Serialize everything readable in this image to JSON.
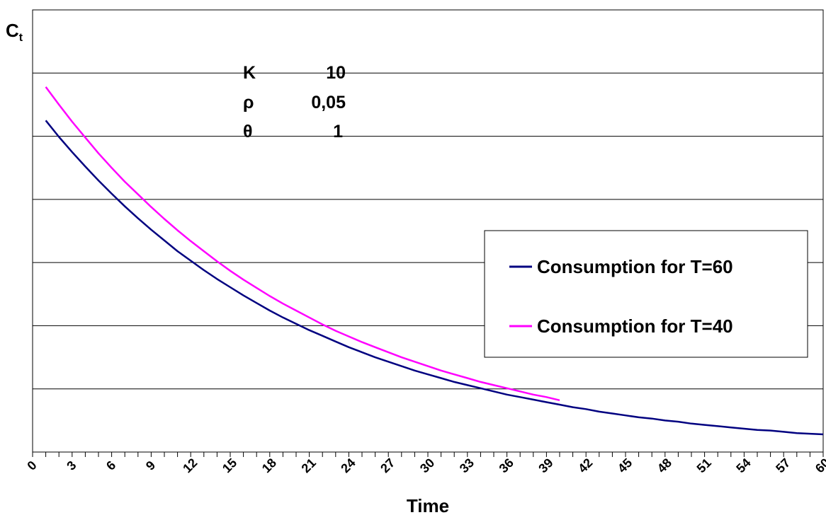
{
  "chart_data": {
    "type": "line",
    "title": "",
    "xlabel": "Time",
    "ylabel": "C",
    "ylabel_sub": "t",
    "xlim": [
      0,
      60
    ],
    "ylim": [
      0,
      7
    ],
    "y_tick_labels_shown": false,
    "grid": "horizontal",
    "x_ticks": [
      0,
      3,
      6,
      9,
      12,
      15,
      18,
      21,
      24,
      27,
      30,
      33,
      36,
      39,
      42,
      45,
      48,
      51,
      54,
      57,
      60
    ],
    "legend_position": "right",
    "parameters": [
      {
        "symbol": "K",
        "value": "10"
      },
      {
        "symbol": "ρ",
        "value": "0,05"
      },
      {
        "symbol": "θ",
        "value": "1"
      }
    ],
    "series": [
      {
        "name": "Consumption for T=60",
        "color": "#000080",
        "x": [
          1,
          2,
          3,
          4,
          5,
          6,
          7,
          8,
          9,
          10,
          11,
          12,
          13,
          14,
          15,
          16,
          17,
          18,
          19,
          20,
          21,
          22,
          23,
          24,
          25,
          26,
          27,
          28,
          29,
          30,
          31,
          32,
          33,
          34,
          35,
          36,
          37,
          38,
          39,
          40,
          41,
          42,
          43,
          44,
          45,
          46,
          47,
          48,
          49,
          50,
          51,
          52,
          53,
          54,
          55,
          56,
          57,
          58,
          59,
          60
        ],
        "y": [
          5.25,
          4.99,
          4.75,
          4.52,
          4.3,
          4.09,
          3.89,
          3.7,
          3.52,
          3.35,
          3.18,
          3.03,
          2.88,
          2.74,
          2.61,
          2.48,
          2.36,
          2.24,
          2.13,
          2.03,
          1.93,
          1.84,
          1.75,
          1.66,
          1.58,
          1.5,
          1.43,
          1.36,
          1.29,
          1.23,
          1.17,
          1.11,
          1.06,
          1.01,
          0.96,
          0.91,
          0.87,
          0.83,
          0.79,
          0.75,
          0.71,
          0.68,
          0.64,
          0.61,
          0.58,
          0.55,
          0.53,
          0.5,
          0.48,
          0.45,
          0.43,
          0.41,
          0.39,
          0.37,
          0.35,
          0.34,
          0.32,
          0.3,
          0.29,
          0.28
        ]
      },
      {
        "name": "Consumption for T=40",
        "color": "#FF00FF",
        "x": [
          1,
          2,
          3,
          4,
          5,
          6,
          7,
          8,
          9,
          10,
          11,
          12,
          13,
          14,
          15,
          16,
          17,
          18,
          19,
          20,
          21,
          22,
          23,
          24,
          25,
          26,
          27,
          28,
          29,
          30,
          31,
          32,
          33,
          34,
          35,
          36,
          37,
          38,
          39,
          40
        ],
        "y": [
          5.78,
          5.5,
          5.23,
          4.98,
          4.73,
          4.5,
          4.28,
          4.08,
          3.88,
          3.69,
          3.51,
          3.34,
          3.18,
          3.02,
          2.87,
          2.73,
          2.6,
          2.47,
          2.35,
          2.24,
          2.13,
          2.02,
          1.92,
          1.83,
          1.74,
          1.66,
          1.58,
          1.5,
          1.43,
          1.36,
          1.29,
          1.23,
          1.17,
          1.11,
          1.06,
          1.01,
          0.96,
          0.91,
          0.87,
          0.82
        ]
      }
    ]
  }
}
